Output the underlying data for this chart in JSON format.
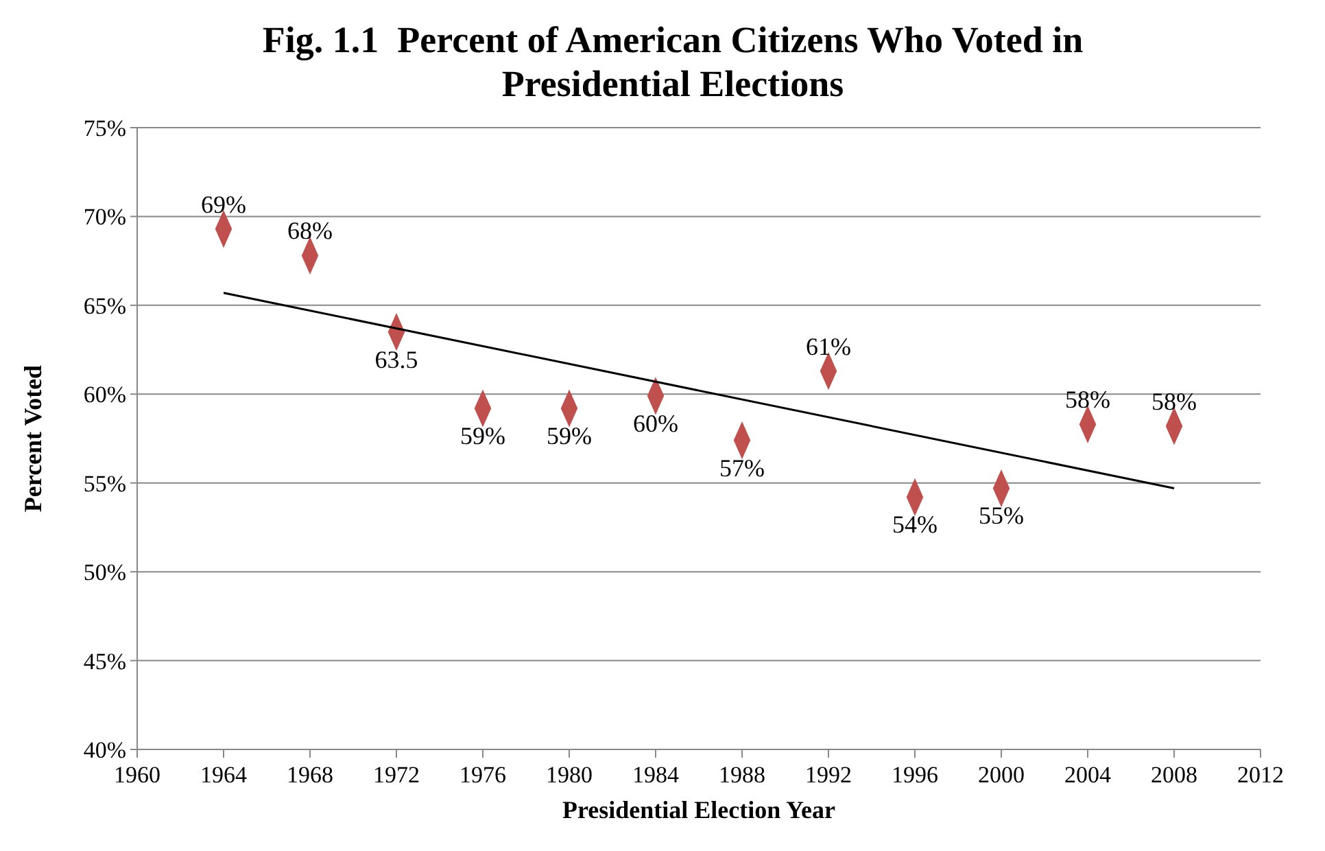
{
  "chart_data": {
    "type": "scatter",
    "title": "Fig. 1.1  Percent of American Citizens Who Voted in Presidential Elections",
    "xlabel": "Presidential Election Year",
    "ylabel": "Percent Voted",
    "xlim": [
      1960,
      2012
    ],
    "xticks": [
      1960,
      1964,
      1968,
      1972,
      1976,
      1980,
      1984,
      1988,
      1992,
      1996,
      2000,
      2004,
      2008,
      2012
    ],
    "ylim": [
      40,
      75
    ],
    "yticks": [
      {
        "value": 40,
        "label": "40%"
      },
      {
        "value": 45,
        "label": "45%"
      },
      {
        "value": 50,
        "label": "50%"
      },
      {
        "value": 55,
        "label": "55%"
      },
      {
        "value": 60,
        "label": "60%"
      },
      {
        "value": 65,
        "label": "65%"
      },
      {
        "value": 70,
        "label": "70%"
      },
      {
        "value": 75,
        "label": "75%"
      }
    ],
    "grid": "y",
    "marker": "diamond",
    "series": [
      {
        "type": "scatter",
        "color": "#c0504d",
        "x": [
          1964,
          1968,
          1972,
          1976,
          1980,
          1984,
          1988,
          1992,
          1996,
          2000,
          2004,
          2008
        ],
        "values": [
          69.3,
          67.8,
          63.5,
          59.2,
          59.2,
          59.9,
          57.4,
          61.3,
          54.2,
          54.7,
          58.3,
          58.2
        ],
        "value_labels": [
          "69%",
          "68%",
          "63.5",
          "59%",
          "59%",
          "60%",
          "57%",
          "61%",
          "54%",
          "55%",
          "58%",
          "58%"
        ]
      },
      {
        "type": "line",
        "color": "#000000",
        "marker": "none",
        "x": [
          1964,
          2008
        ],
        "values": [
          65.7,
          54.7
        ]
      }
    ]
  }
}
